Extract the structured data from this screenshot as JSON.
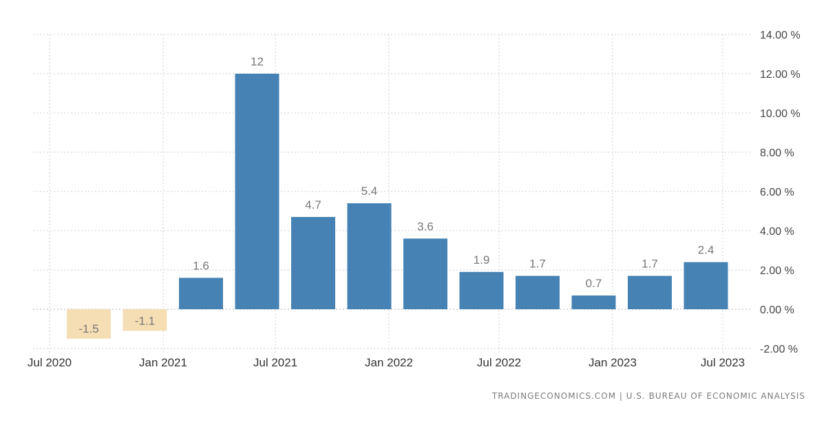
{
  "chart_data": {
    "type": "bar",
    "categories": [
      "Q3 2020",
      "Q4 2020",
      "Q1 2021",
      "Q2 2021",
      "Q3 2021",
      "Q4 2021",
      "Q1 2022",
      "Q2 2022",
      "Q3 2022",
      "Q4 2022",
      "Q1 2023",
      "Q2 2023"
    ],
    "values": [
      -1.5,
      -1.1,
      1.6,
      12,
      4.7,
      5.4,
      3.6,
      1.9,
      1.7,
      0.7,
      1.7,
      2.4
    ],
    "value_labels": [
      "-1.5",
      "-1.1",
      "1.6",
      "12",
      "4.7",
      "5.4",
      "3.6",
      "1.9",
      "1.7",
      "0.7",
      "1.7",
      "2.4"
    ],
    "x_ticks": [
      "Jul 2020",
      "Jan 2021",
      "Jul 2021",
      "Jan 2022",
      "Jul 2022",
      "Jan 2023",
      "Jul 2023"
    ],
    "y_ticks": [
      "-2.00 %",
      "0.00 %",
      "2.00 %",
      "4.00 %",
      "6.00 %",
      "8.00 %",
      "10.00 %",
      "12.00 %",
      "14.00 %"
    ],
    "ylim": [
      -2,
      14
    ],
    "grid": true,
    "colors": {
      "positive": "#4682b4",
      "negative": "#f5deb3",
      "grid": "#cccccc",
      "zero_line": "#b0b0b0"
    }
  },
  "source": "TRADINGECONOMICS.COM | U.S. BUREAU OF ECONOMIC ANALYSIS"
}
